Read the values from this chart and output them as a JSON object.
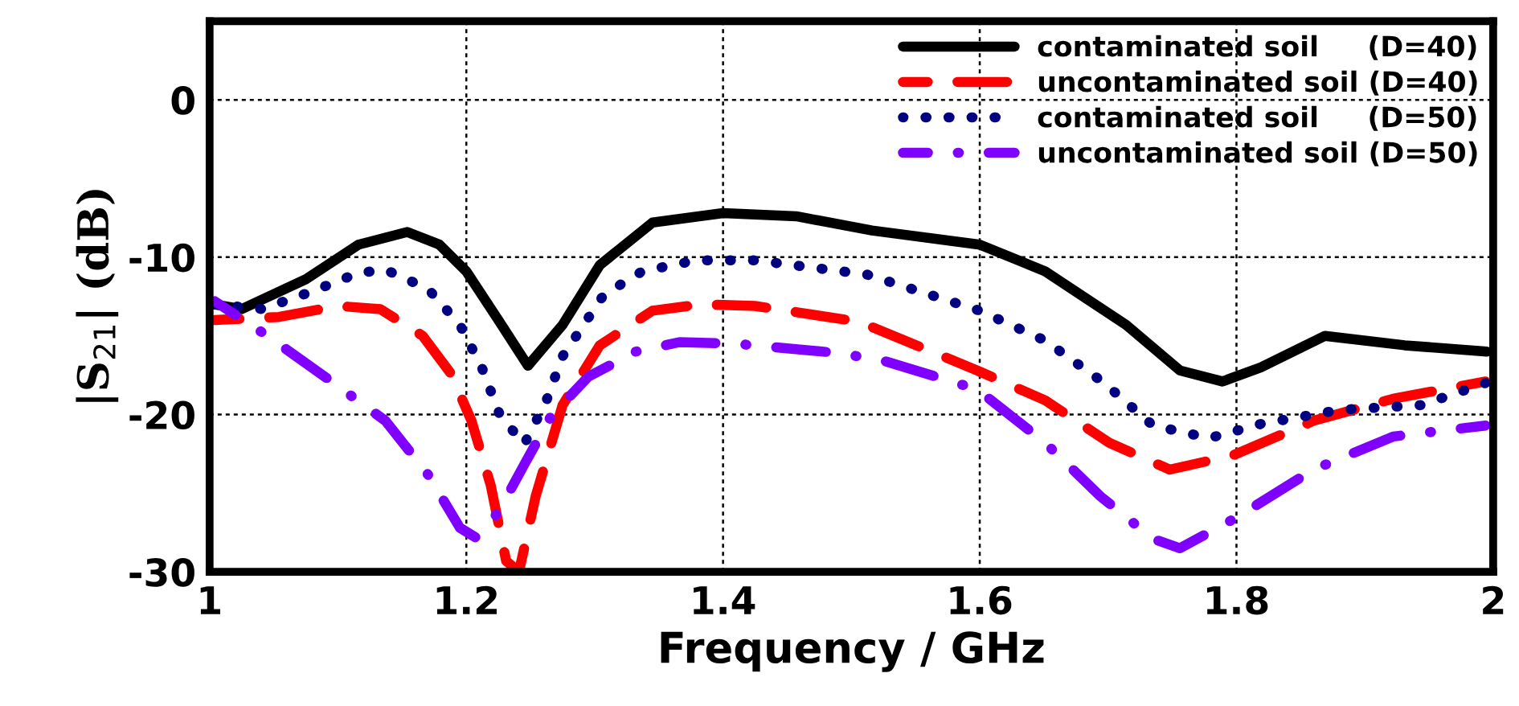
{
  "chart_data": {
    "type": "line",
    "xlabel": "Frequency / GHz",
    "ylabel": "|S$_{21}$| (dB)",
    "xlim": [
      1,
      2
    ],
    "ylim": [
      -30,
      5
    ],
    "xticks": [
      1,
      1.2,
      1.4,
      1.6,
      1.8,
      2
    ],
    "yticks": [
      -30,
      -20,
      -10,
      0
    ],
    "grid": true,
    "legend": "top right",
    "marker": "none",
    "series": [
      {
        "name": "contaminated soil     (D=40)",
        "color": "#000000",
        "line_style": "solid",
        "x": [
          1.004,
          1.025,
          1.075,
          1.116,
          1.154,
          1.179,
          1.2,
          1.225,
          1.248,
          1.275,
          1.304,
          1.345,
          1.4,
          1.457,
          1.516,
          1.6,
          1.651,
          1.714,
          1.756,
          1.789,
          1.819,
          1.869,
          1.931,
          1.995
        ],
        "values": [
          -13,
          -13.3,
          -11.4,
          -9.2,
          -8.4,
          -9.2,
          -10.9,
          -14,
          -16.9,
          -14.3,
          -10.5,
          -7.8,
          -7.2,
          -7.4,
          -8.3,
          -9.2,
          -10.9,
          -14.3,
          -17.2,
          -17.9,
          -17,
          -15,
          -15.6,
          -16
        ]
      },
      {
        "name": "uncontaminated soil (D=40)",
        "color": "#ff0000",
        "line_style": "dashed",
        "x": [
          1.004,
          1.054,
          1.1,
          1.133,
          1.166,
          1.188,
          1.204,
          1.219,
          1.231,
          1.241,
          1.254,
          1.275,
          1.304,
          1.345,
          1.383,
          1.425,
          1.506,
          1.598,
          1.651,
          1.701,
          1.748,
          1.797,
          1.86,
          1.922,
          1.994
        ],
        "values": [
          -14,
          -13.8,
          -13.1,
          -13.3,
          -15,
          -17.4,
          -20.4,
          -24.5,
          -29.3,
          -30,
          -25.2,
          -19.4,
          -15.6,
          -13.4,
          -13,
          -13.1,
          -14.1,
          -17.2,
          -19.1,
          -21.8,
          -23.5,
          -22.6,
          -20.4,
          -19,
          -17.9
        ]
      },
      {
        "name": "contaminated soil     (D=50)",
        "color": "#000080",
        "line_style": "dotted",
        "x": [
          1.004,
          1.041,
          1.079,
          1.116,
          1.137,
          1.17,
          1.195,
          1.212,
          1.226,
          1.245,
          1.262,
          1.275,
          1.307,
          1.337,
          1.379,
          1.425,
          1.512,
          1.6,
          1.651,
          1.697,
          1.735,
          1.779,
          1.819,
          1.881,
          1.944,
          1.994
        ],
        "values": [
          -13,
          -13.3,
          -12.2,
          -11,
          -10.8,
          -12,
          -14.3,
          -17,
          -20,
          -21.9,
          -19.2,
          -16.3,
          -12.4,
          -10.9,
          -10.2,
          -10.2,
          -11.1,
          -13.4,
          -15.3,
          -18,
          -20.7,
          -21.5,
          -20.6,
          -19.7,
          -19.4,
          -18
        ]
      },
      {
        "name": "uncontaminated soil (D=50)",
        "color": "#8000ff",
        "line_style": "dashdot",
        "x": [
          1.004,
          1.045,
          1.095,
          1.137,
          1.17,
          1.195,
          1.207,
          1.225,
          1.245,
          1.266,
          1.295,
          1.332,
          1.366,
          1.41,
          1.491,
          1.526,
          1.598,
          1.651,
          1.694,
          1.735,
          1.756,
          1.801,
          1.86,
          1.922,
          1.994
        ],
        "values": [
          -12.8,
          -15,
          -17.9,
          -20.4,
          -23.8,
          -27.2,
          -27.8,
          -26.2,
          -23.2,
          -20.1,
          -17.6,
          -16,
          -15.4,
          -15.5,
          -16.1,
          -16.6,
          -18.4,
          -21.8,
          -25.2,
          -27.9,
          -28.5,
          -26.5,
          -23.5,
          -21.4,
          -20.7
        ]
      }
    ]
  }
}
